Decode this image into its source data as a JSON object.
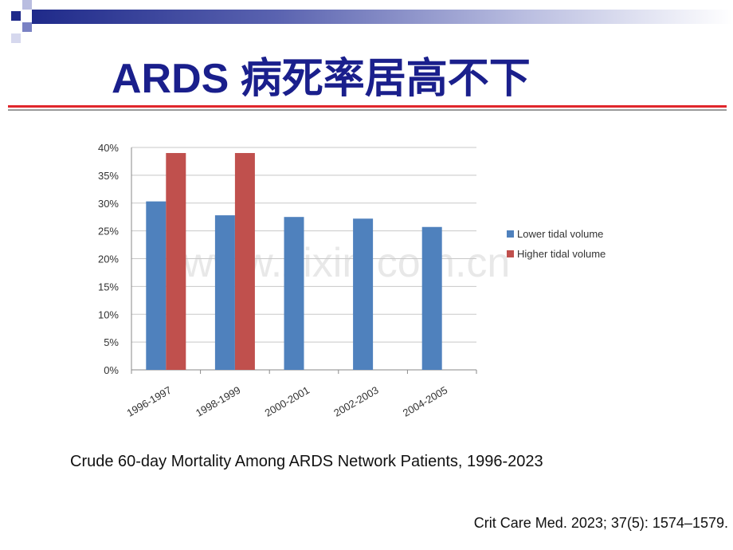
{
  "slide": {
    "title": "ARDS 病死率居高不下",
    "caption": "Crude 60-day Mortality Among ARDS Network Patients, 1996-2023",
    "citation": "Crit Care Med. 2023; 37(5): 1574–1579.",
    "watermark": "www.zixin.com.cn",
    "colors": {
      "title": "#1a1f8c",
      "rule": "#e0262b",
      "band": "#1f2a8a"
    }
  },
  "chart_data": {
    "type": "bar",
    "title": "",
    "xlabel": "",
    "ylabel": "",
    "categories": [
      "1996-1997",
      "1998-1999",
      "2000-2001",
      "2002-2003",
      "2004-2005"
    ],
    "series": [
      {
        "name": "Lower tidal volume",
        "color": "#4f81bd",
        "values": [
          30.3,
          27.8,
          27.5,
          27.2,
          25.7
        ]
      },
      {
        "name": "Higher tidal volume",
        "color": "#c0504d",
        "values": [
          39.0,
          39.0,
          null,
          null,
          null
        ]
      }
    ],
    "ylim": [
      0,
      40
    ],
    "yticks": [
      0,
      5,
      10,
      15,
      20,
      25,
      30,
      35,
      40
    ],
    "ytick_labels": [
      "0%",
      "5%",
      "10%",
      "15%",
      "20%",
      "25%",
      "30%",
      "35%",
      "40%"
    ],
    "grid": true,
    "legend": "right"
  }
}
